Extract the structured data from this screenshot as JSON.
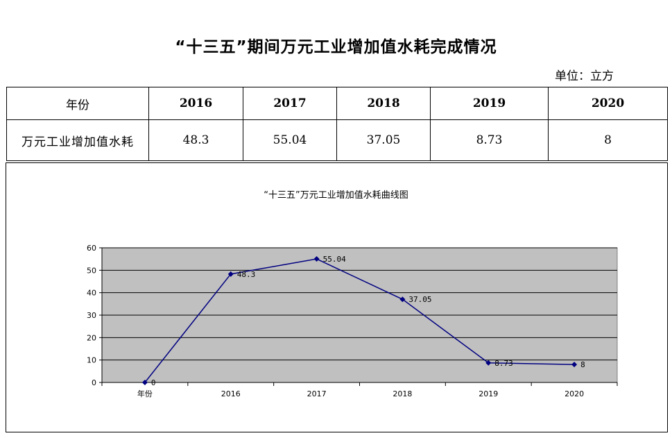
{
  "header": {
    "title": "“十三五”期间万元工业增加值水耗完成情况",
    "unit": "单位：立方"
  },
  "table": {
    "row_header": "年份",
    "years": [
      "2016",
      "2017",
      "2018",
      "2019",
      "2020"
    ],
    "value_row_label": "万元工业增加值水耗",
    "values": [
      "48.3",
      "55.04",
      "37.05",
      "8.73",
      "8"
    ]
  },
  "chart_data": {
    "type": "line",
    "title": "“十三五”万元工业增加值水耗曲线图",
    "categories": [
      "年份",
      "2016",
      "2017",
      "2018",
      "2019",
      "2020"
    ],
    "values": [
      0,
      48.3,
      55.04,
      37.05,
      8.73,
      8
    ],
    "data_labels": [
      "0",
      "48.3",
      "55.04",
      "37.05",
      "8.73",
      "8"
    ],
    "ylim": [
      0,
      60
    ],
    "yticks": [
      0,
      10,
      20,
      30,
      40,
      50,
      60
    ],
    "grid": true,
    "legend": "none",
    "colors": {
      "line": "#000080",
      "plot_background": "#c0c0c0"
    }
  }
}
